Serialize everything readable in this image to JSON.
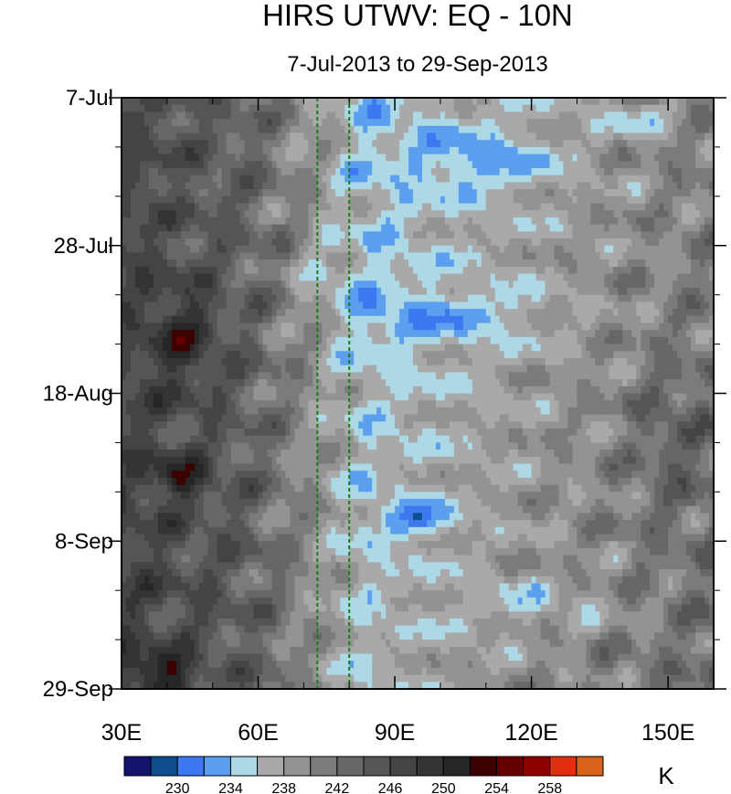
{
  "chart_data": {
    "type": "heatmap",
    "title": "HIRS UTWV: EQ - 10N",
    "subtitle": "7-Jul-2013 to 29-Sep-2013",
    "x_ticks": [
      {
        "value": 30,
        "label": "30E"
      },
      {
        "value": 60,
        "label": "60E"
      },
      {
        "value": 90,
        "label": "90E"
      },
      {
        "value": 120,
        "label": "120E"
      },
      {
        "value": 150,
        "label": "150E"
      }
    ],
    "xlim": [
      30,
      160
    ],
    "y_ticks": [
      {
        "value": 0,
        "label": "7-Jul"
      },
      {
        "value": 21,
        "label": "28-Jul"
      },
      {
        "value": 42,
        "label": "18-Aug"
      },
      {
        "value": 63,
        "label": "8-Sep"
      },
      {
        "value": 84,
        "label": "29-Sep"
      }
    ],
    "ylim": [
      0,
      84
    ],
    "reference_lines_x": [
      73,
      80
    ],
    "reference_line_color": "#1a7a1a",
    "colorbar": {
      "units": "K",
      "levels": [
        228,
        230,
        232,
        234,
        236,
        238,
        240,
        242,
        244,
        246,
        248,
        250,
        252,
        254,
        256,
        258,
        260
      ],
      "labels": [
        {
          "value": 230,
          "label": "230"
        },
        {
          "value": 234,
          "label": "234"
        },
        {
          "value": 238,
          "label": "238"
        },
        {
          "value": 242,
          "label": "242"
        },
        {
          "value": 246,
          "label": "246"
        },
        {
          "value": 250,
          "label": "250"
        },
        {
          "value": 254,
          "label": "254"
        },
        {
          "value": 258,
          "label": "258"
        }
      ],
      "colors": [
        "#14146e",
        "#0f4e8c",
        "#3c78f0",
        "#5aa0ee",
        "#add8e6",
        "#a9a9a9",
        "#939393",
        "#7b7b7b",
        "#676767",
        "#555555",
        "#444444",
        "#343434",
        "#262626",
        "#3d0000",
        "#640000",
        "#8c0000",
        "#e03010",
        "#d8641c"
      ]
    }
  }
}
